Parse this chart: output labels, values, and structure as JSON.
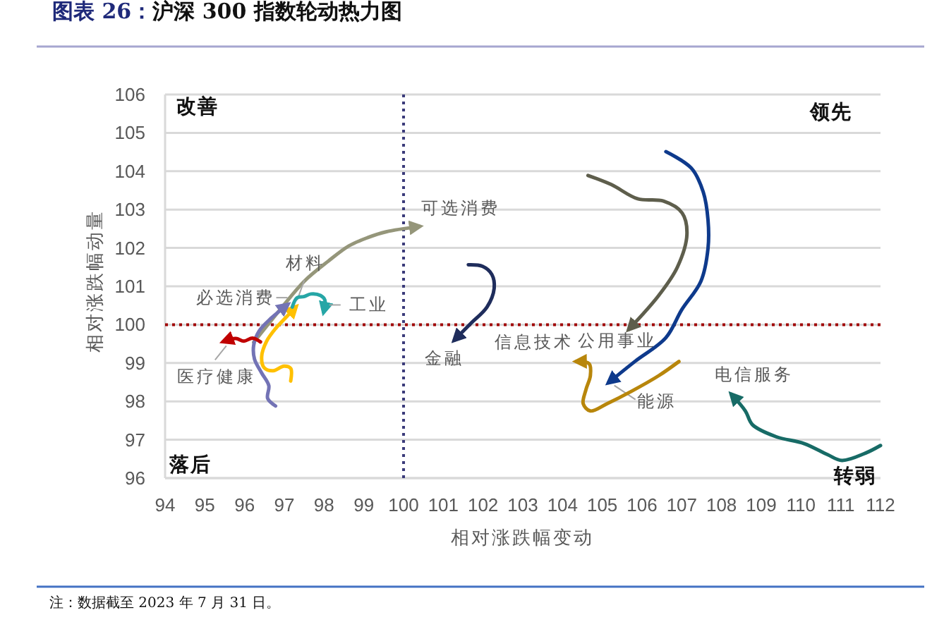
{
  "chart_data": {
    "type": "line",
    "title": "图表 26：沪深 300 指数轮动热力图",
    "xlabel": "相对涨跌幅变动",
    "ylabel": "相对涨跌幅动量",
    "xlim": [
      94,
      112
    ],
    "xticks": [
      94,
      95,
      96,
      97,
      98,
      99,
      100,
      101,
      102,
      103,
      104,
      105,
      106,
      107,
      108,
      109,
      110,
      111,
      112
    ],
    "ylim": [
      96,
      106
    ],
    "yticks": [
      96,
      97,
      98,
      99,
      100,
      101,
      102,
      103,
      104,
      105,
      106
    ],
    "grid": "y",
    "ref_lines": [
      {
        "axis": "x",
        "value": 100,
        "color": "#3b3b7a",
        "line_style": "dotted"
      },
      {
        "axis": "y",
        "value": 100,
        "color": "#a00000",
        "line_style": "dotted"
      }
    ],
    "annotations": [
      "改善",
      "领先",
      "落后",
      "转弱",
      "注：数据截至 2023 年 7 月 31 日。"
    ],
    "series": [
      {
        "name": "可选消费",
        "color": "#95967a",
        "x": [
          96.23,
          96.9,
          97.5,
          98.1,
          98.62,
          99.1,
          99.56,
          100.4
        ],
        "values": [
          99.54,
          100.4,
          101.13,
          101.65,
          102.05,
          102.27,
          102.42,
          102.56
        ]
      },
      {
        "name": "材料",
        "color": "#ffc000",
        "x": [
          97.16,
          97.16,
          96.99,
          96.72,
          96.49,
          96.43,
          96.55,
          96.78,
          97.06,
          97.29
        ],
        "values": [
          98.53,
          98.86,
          98.92,
          98.8,
          98.88,
          99.17,
          99.56,
          99.9,
          100.21,
          100.46
        ]
      },
      {
        "name": "必选消费",
        "color": "#7373b5",
        "x": [
          96.78,
          96.58,
          96.61,
          96.43,
          96.25,
          96.23,
          96.37,
          96.67,
          97.08
        ],
        "values": [
          97.88,
          98.08,
          98.41,
          98.74,
          99.1,
          99.47,
          99.84,
          100.17,
          100.52
        ]
      },
      {
        "name": "工业",
        "color": "#26a6a6",
        "x": [
          97.2,
          97.32,
          97.49,
          97.67,
          97.91,
          98.02,
          97.99
        ],
        "values": [
          100.46,
          100.7,
          100.73,
          100.8,
          100.76,
          100.64,
          100.33
        ]
      },
      {
        "name": "医疗健康",
        "color": "#c00000",
        "x": [
          96.4,
          96.2,
          95.98,
          95.78,
          95.47
        ],
        "values": [
          99.55,
          99.65,
          99.57,
          99.64,
          99.56
        ]
      },
      {
        "name": "金融",
        "color": "#1f2d5c",
        "x": [
          101.63,
          101.99,
          102.22,
          102.28,
          102.1,
          101.69,
          101.28
        ],
        "values": [
          101.56,
          101.52,
          101.31,
          100.95,
          100.46,
          100.03,
          99.6
        ]
      },
      {
        "name": "公用事业",
        "color": "#5e5e4c",
        "x": [
          104.64,
          105.23,
          105.89,
          106.54,
          107.01,
          107.13,
          106.89,
          106.42,
          105.67
        ],
        "values": [
          103.89,
          103.65,
          103.28,
          103.22,
          102.91,
          102.36,
          101.5,
          100.76,
          99.88
        ]
      },
      {
        "name": "能源",
        "color": "#0e3a8c",
        "x": [
          106.6,
          107.24,
          107.54,
          107.66,
          107.66,
          107.48,
          107.0,
          106.6,
          105.82,
          105.16
        ],
        "values": [
          104.51,
          104.08,
          103.46,
          102.73,
          101.99,
          101.13,
          100.39,
          99.66,
          99.04,
          98.49
        ]
      },
      {
        "name": "信息技术",
        "color": "#b8860b",
        "x": [
          106.93,
          106.42,
          105.71,
          105.12,
          104.7,
          104.52,
          104.59,
          104.7,
          104.67,
          104.35
        ],
        "values": [
          99.04,
          98.67,
          98.25,
          97.94,
          97.75,
          97.94,
          98.31,
          98.67,
          98.98,
          99.04
        ]
      },
      {
        "name": "电信服务",
        "color": "#176b66",
        "x": [
          112.0,
          111.62,
          111.03,
          110.67,
          110.08,
          109.37,
          108.78,
          108.6,
          108.25
        ],
        "values": [
          96.85,
          96.65,
          96.46,
          96.61,
          96.9,
          97.08,
          97.39,
          97.75,
          98.18
        ]
      }
    ]
  }
}
